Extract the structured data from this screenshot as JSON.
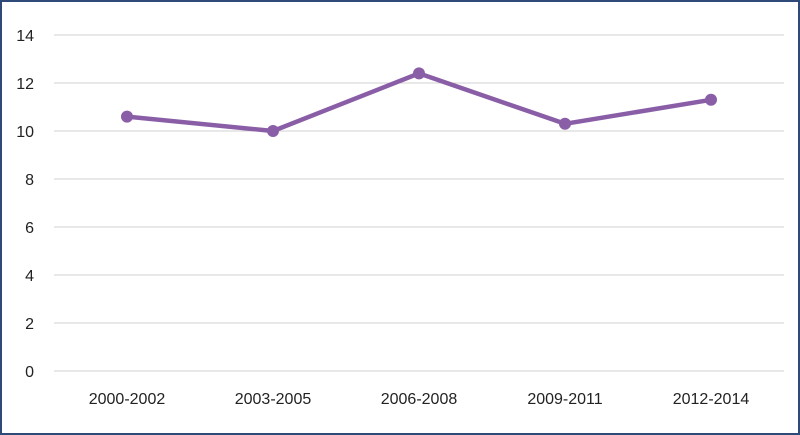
{
  "colors": {
    "line": "#8a5ea6",
    "marker": "#8a5ea6",
    "grid": "#d0d0d0",
    "border": "#2f4a78"
  },
  "chart_data": {
    "type": "line",
    "categories": [
      "2000-2002",
      "2003-2005",
      "2006-2008",
      "2009-2011",
      "2012-2014"
    ],
    "series": [
      {
        "values": [
          10.6,
          10.0,
          12.4,
          10.3,
          11.3
        ]
      }
    ],
    "ylim": [
      0,
      14
    ],
    "yticks": [
      "0",
      "2",
      "4",
      "6",
      "8",
      "10",
      "12",
      "14"
    ],
    "grid": true,
    "legend": "none",
    "title": "",
    "xlabel": "",
    "ylabel": ""
  }
}
